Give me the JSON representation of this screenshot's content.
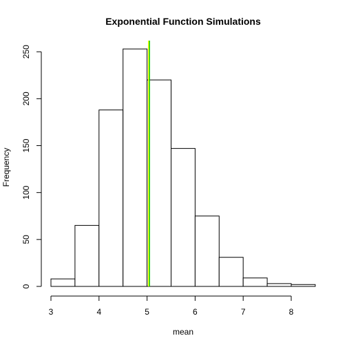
{
  "chart_data": {
    "type": "bar",
    "title": "Exponential Function Simulations",
    "xlabel": "mean",
    "ylabel": "Frequency",
    "bin_edges": [
      3.0,
      3.5,
      4.0,
      4.5,
      5.0,
      5.5,
      6.0,
      6.5,
      7.0,
      7.5,
      8.0,
      8.5
    ],
    "values": [
      8,
      65,
      188,
      253,
      220,
      147,
      75,
      31,
      9,
      3,
      2
    ],
    "xlim": [
      3,
      8.5
    ],
    "ylim": [
      0,
      260
    ],
    "x_ticks": [
      3,
      4,
      5,
      6,
      7,
      8
    ],
    "x_tick_labels": [
      "3",
      "4",
      "5",
      "6",
      "7",
      "8"
    ],
    "y_ticks": [
      0,
      50,
      100,
      150,
      200,
      250
    ],
    "y_tick_labels": [
      "0",
      "50",
      "100",
      "150",
      "200",
      "250"
    ],
    "reference_lines": [
      {
        "x": 5.03,
        "color": "#ffff00"
      },
      {
        "x": 5.05,
        "color": "#00cc00"
      }
    ],
    "grid": false
  }
}
